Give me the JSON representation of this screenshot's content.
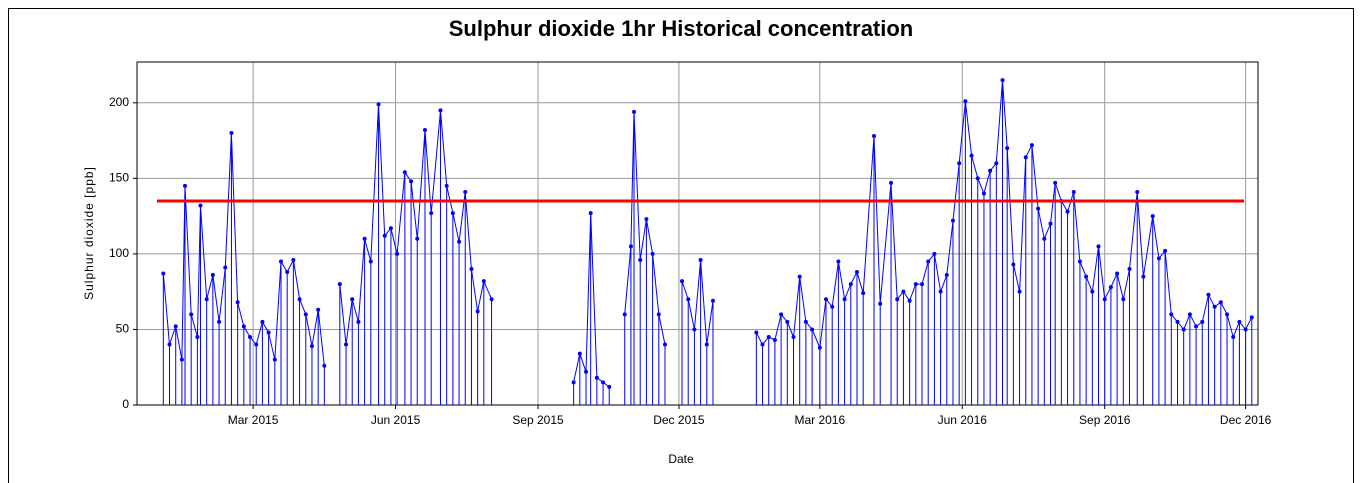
{
  "chart_data": {
    "type": "line",
    "title": "Sulphur dioxide 1hr Historical concentration",
    "xlabel": "Date",
    "ylabel": "Sulphur dioxide  [ppb]",
    "xlim": [
      "2014-12-16",
      "2016-12-09"
    ],
    "xticks": [
      {
        "value": "2015-03-01",
        "label": "Mar 2015"
      },
      {
        "value": "2015-06-01",
        "label": "Jun 2015"
      },
      {
        "value": "2015-09-01",
        "label": "Sep 2015"
      },
      {
        "value": "2015-12-01",
        "label": "Dec 2015"
      },
      {
        "value": "2016-03-01",
        "label": "Mar 2016"
      },
      {
        "value": "2016-06-01",
        "label": "Jun 2016"
      },
      {
        "value": "2016-09-01",
        "label": "Sep 2016"
      },
      {
        "value": "2016-12-01",
        "label": "Dec 2016"
      }
    ],
    "ylim": [
      0,
      227
    ],
    "yticks": [
      0,
      50,
      100,
      150,
      200
    ],
    "grid": true,
    "threshold": {
      "value": 135,
      "color": "#ff0000"
    },
    "x": [
      "2015-01-02",
      "2015-01-06",
      "2015-01-10",
      "2015-01-14",
      "2015-01-16",
      "2015-01-20",
      "2015-01-24",
      "2015-01-26",
      "2015-01-30",
      "2015-02-03",
      "2015-02-07",
      "2015-02-11",
      "2015-02-15",
      "2015-02-19",
      "2015-02-23",
      "2015-02-27",
      "2015-03-03",
      "2015-03-07",
      "2015-03-11",
      "2015-03-15",
      "2015-03-19",
      "2015-03-23",
      "2015-03-27",
      "2015-03-31",
      "2015-04-04",
      "2015-04-08",
      "2015-04-12",
      "2015-04-16",
      "2015-04-20",
      "2015-04-26",
      "2015-04-30",
      "2015-05-04",
      "2015-05-08",
      "2015-05-12",
      "2015-05-16",
      "2015-05-21",
      "2015-05-25",
      "2015-05-29",
      "2015-06-02",
      "2015-06-07",
      "2015-06-11",
      "2015-06-15",
      "2015-06-20",
      "2015-06-24",
      "2015-06-30",
      "2015-07-04",
      "2015-07-08",
      "2015-07-12",
      "2015-07-16",
      "2015-07-20",
      "2015-07-24",
      "2015-07-28",
      "2015-08-02",
      "2015-08-06",
      "2015-09-24",
      "2015-09-28",
      "2015-10-02",
      "2015-10-05",
      "2015-10-09",
      "2015-10-13",
      "2015-10-17",
      "2015-10-21",
      "2015-10-27",
      "2015-10-31",
      "2015-11-02",
      "2015-11-06",
      "2015-11-10",
      "2015-11-14",
      "2015-11-18",
      "2015-11-22",
      "2015-11-26",
      "2015-12-03",
      "2015-12-07",
      "2015-12-11",
      "2015-12-15",
      "2015-12-19",
      "2015-12-23",
      "2015-12-27",
      "2016-01-20",
      "2016-01-24",
      "2016-01-28",
      "2016-02-01",
      "2016-02-05",
      "2016-02-09",
      "2016-02-13",
      "2016-02-17",
      "2016-02-21",
      "2016-02-25",
      "2016-03-01",
      "2016-03-05",
      "2016-03-09",
      "2016-03-13",
      "2016-03-17",
      "2016-03-21",
      "2016-03-25",
      "2016-03-29",
      "2016-04-05",
      "2016-04-09",
      "2016-04-16",
      "2016-04-20",
      "2016-04-24",
      "2016-04-28",
      "2016-05-02",
      "2016-05-06",
      "2016-05-10",
      "2016-05-14",
      "2016-05-18",
      "2016-05-22",
      "2016-05-26",
      "2016-05-30",
      "2016-06-03",
      "2016-06-07",
      "2016-06-11",
      "2016-06-15",
      "2016-06-19",
      "2016-06-23",
      "2016-06-27",
      "2016-06-30",
      "2016-07-04",
      "2016-07-08",
      "2016-07-12",
      "2016-07-16",
      "2016-07-20",
      "2016-07-24",
      "2016-07-28",
      "2016-07-31",
      "2016-08-04",
      "2016-08-08",
      "2016-08-12",
      "2016-08-16",
      "2016-08-20",
      "2016-08-24",
      "2016-08-28",
      "2016-09-01",
      "2016-09-05",
      "2016-09-09",
      "2016-09-13",
      "2016-09-17",
      "2016-09-22",
      "2016-09-26",
      "2016-10-02",
      "2016-10-06",
      "2016-10-10",
      "2016-10-14",
      "2016-10-18",
      "2016-10-22",
      "2016-10-26",
      "2016-10-30",
      "2016-11-03",
      "2016-11-07",
      "2016-11-11",
      "2016-11-15",
      "2016-11-19",
      "2016-11-23",
      "2016-11-27",
      "2016-12-01",
      "2016-12-05"
    ],
    "series": [
      {
        "color": "#0000ff",
        "values": [
          87,
          40,
          52,
          30,
          145,
          60,
          45,
          132,
          70,
          86,
          55,
          91,
          180,
          68,
          52,
          45,
          40,
          55,
          48,
          30,
          95,
          88,
          96,
          70,
          60,
          39,
          63,
          26,
          null,
          80,
          40,
          70,
          55,
          110,
          95,
          199,
          112,
          117,
          100,
          154,
          148,
          110,
          182,
          127,
          195,
          145,
          127,
          108,
          141,
          90,
          62,
          82,
          70,
          null,
          15,
          34,
          22,
          127,
          18,
          15,
          12,
          null,
          60,
          105,
          194,
          96,
          123,
          100,
          60,
          40,
          null,
          82,
          70,
          50,
          96,
          40,
          69,
          null,
          48,
          40,
          45,
          43,
          60,
          55,
          45,
          85,
          55,
          50,
          38,
          70,
          65,
          95,
          70,
          80,
          88,
          74,
          178,
          67,
          147,
          70,
          75,
          69,
          80,
          80,
          95,
          100,
          75,
          86,
          122,
          160,
          201,
          165,
          150,
          140,
          155,
          160,
          215,
          170,
          93,
          75,
          164,
          172,
          130,
          110,
          120,
          147,
          135,
          128,
          141,
          95,
          85,
          75,
          105,
          70,
          78,
          87,
          70,
          90,
          141,
          85,
          125,
          97,
          102,
          60,
          55,
          50,
          60,
          52,
          55,
          73,
          65,
          68,
          60,
          45,
          55,
          50,
          58
        ]
      }
    ]
  }
}
